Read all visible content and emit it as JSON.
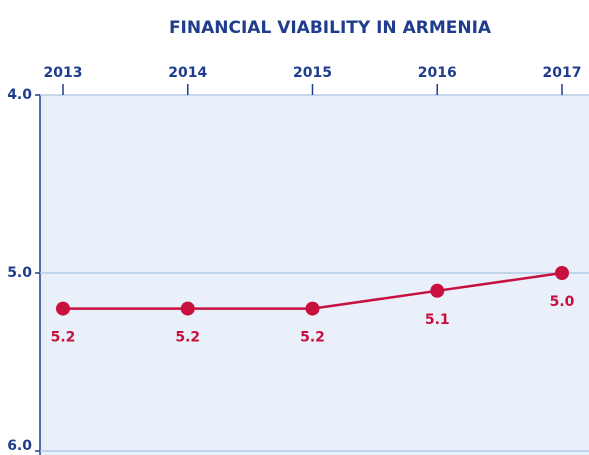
{
  "chart_data": {
    "type": "line",
    "title": "FINANCIAL VIABILITY IN ARMENIA",
    "categories": [
      "2013",
      "2014",
      "2015",
      "2016",
      "2017"
    ],
    "values": [
      5.2,
      5.2,
      5.2,
      5.1,
      5.0
    ],
    "value_labels": [
      "5.2",
      "5.2",
      "5.2",
      "5.1",
      "5.0"
    ],
    "color": "#c8103e",
    "ylim": [
      4,
      6
    ],
    "y_inverted": true,
    "yticks": [
      {
        "value": 4,
        "label": "4.0"
      },
      {
        "value": 5,
        "label": "5.0"
      },
      {
        "value": 6,
        "label": "6.0"
      }
    ],
    "grid": true
  }
}
